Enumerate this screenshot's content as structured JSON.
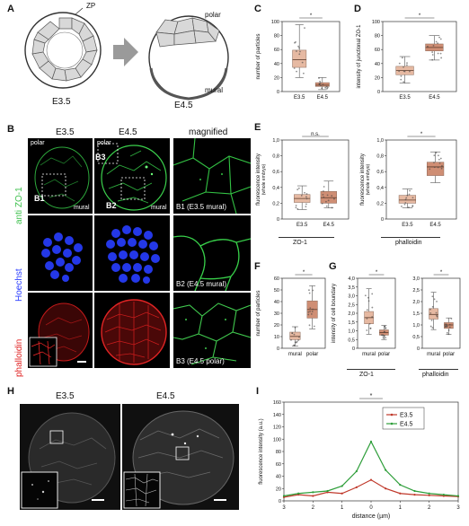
{
  "panels": {
    "A": "A",
    "B": "B",
    "C": "C",
    "D": "D",
    "E": "E",
    "F": "F",
    "G": "G",
    "H": "H",
    "I": "I"
  },
  "schematic": {
    "zp": "ZP",
    "polar": "polar",
    "mural": "mural",
    "left_stage": "E3.5",
    "right_stage": "E4.5"
  },
  "panel_b": {
    "col_e35": "E3.5",
    "col_e45": "E4.5",
    "col_mag": "magnified",
    "polar": "polar",
    "mural": "mural",
    "box_b1": "B1",
    "box_b2": "B2",
    "box_b3": "B3",
    "row_zo1": "anti ZO-1",
    "row_hoechst": "Hoechst",
    "row_phalloidin": "phalloidin",
    "mag_b1": "B1 (E3.5 mural)",
    "mag_b2": "B2 (E4.5 mural)",
    "mag_b3": "B3 (E4.5 polar)"
  },
  "panel_h": {
    "e35": "E3.5",
    "e45": "E4.5"
  },
  "colors": {
    "zo1": "#39c24a",
    "hoechst": "#2a3cff",
    "phalloidin": "#e02020",
    "box_fill": "#e6b9a2",
    "box_fill_dark": "#cf8e74",
    "e35_line": "#c0392b",
    "e45_line": "#2e9e3a"
  },
  "chart_data": [
    {
      "id": "C",
      "type": "box",
      "categories": [
        "E3.5",
        "E4.5"
      ],
      "ylabel": "number of particles",
      "ylim": [
        0,
        110
      ],
      "yticks": [
        0,
        20,
        40,
        60,
        80,
        100
      ],
      "significance": "*",
      "boxes": [
        {
          "q1": 38,
          "median": 50,
          "q3": 65,
          "min": 22,
          "max": 105
        },
        {
          "q1": 8,
          "median": 10,
          "q3": 14,
          "min": 3,
          "max": 22
        }
      ]
    },
    {
      "id": "D",
      "type": "box",
      "categories": [
        "E3.5",
        "E4.5"
      ],
      "ylabel": "intensity of junctional ZO-1",
      "ylim": [
        0,
        100
      ],
      "yticks": [
        0,
        20,
        40,
        60,
        80,
        100
      ],
      "significance": "*",
      "boxes": [
        {
          "q1": 24,
          "median": 30,
          "q3": 36,
          "min": 12,
          "max": 50
        },
        {
          "q1": 58,
          "median": 63,
          "q3": 68,
          "min": 45,
          "max": 80
        }
      ]
    },
    {
      "id": "E1",
      "type": "box",
      "categories": [
        "E3.5",
        "E4.5"
      ],
      "group": "ZO-1",
      "ylabel": "fluorescence intensity",
      "ylabel2": "(whole embryo)",
      "ylim": [
        0,
        1
      ],
      "yticks": [
        "0",
        "0,2",
        "0,4",
        "0,6",
        "0,8",
        "1,0"
      ],
      "significance": "n.s.",
      "boxes": [
        {
          "q1": 0.21,
          "median": 0.26,
          "q3": 0.31,
          "min": 0.12,
          "max": 0.42
        },
        {
          "q1": 0.2,
          "median": 0.27,
          "q3": 0.35,
          "min": 0.14,
          "max": 0.48
        }
      ]
    },
    {
      "id": "E2",
      "type": "box",
      "categories": [
        "E3.5",
        "E4.5"
      ],
      "group": "phalloidin",
      "ylabel": "fluorescence intensity",
      "ylabel2": "(whole embryo)",
      "ylim": [
        0,
        1
      ],
      "yticks": [
        "0",
        "0,2",
        "0,4",
        "0,6",
        "0,8",
        "1,0"
      ],
      "significance": "*",
      "boxes": [
        {
          "q1": 0.2,
          "median": 0.24,
          "q3": 0.3,
          "min": 0.14,
          "max": 0.38
        },
        {
          "q1": 0.55,
          "median": 0.66,
          "q3": 0.72,
          "min": 0.46,
          "max": 0.85
        }
      ]
    },
    {
      "id": "F",
      "type": "box",
      "categories": [
        "mural",
        "polar"
      ],
      "ylabel": "number of particles",
      "ylim": [
        0,
        65
      ],
      "yticks": [
        0,
        10,
        20,
        30,
        40,
        50,
        60
      ],
      "significance": "*",
      "boxes": [
        {
          "q1": 8,
          "median": 11,
          "q3": 15,
          "min": 2,
          "max": 20
        },
        {
          "q1": 28,
          "median": 36,
          "q3": 44,
          "min": 18,
          "max": 58
        }
      ]
    },
    {
      "id": "G1",
      "type": "box",
      "categories": [
        "mural",
        "polar"
      ],
      "group": "ZO-1",
      "ylabel": "intensity of cell boundary",
      "ylim": [
        0,
        4
      ],
      "yticks": [
        "0",
        "0,5",
        "1,0",
        "1,5",
        "2,0",
        "2,5",
        "3,0",
        "3,5",
        "4,0"
      ],
      "significance": "*",
      "boxes": [
        {
          "q1": 1.4,
          "median": 1.75,
          "q3": 2.1,
          "min": 0.8,
          "max": 3.4
        },
        {
          "q1": 0.75,
          "median": 0.9,
          "q3": 1.05,
          "min": 0.5,
          "max": 1.3
        }
      ]
    },
    {
      "id": "G2",
      "type": "box",
      "categories": [
        "mural",
        "polar"
      ],
      "group": "phalloidin",
      "ylim": [
        0,
        3
      ],
      "yticks": [
        "0",
        "0,5",
        "1,0",
        "1,5",
        "2,0",
        "2,5",
        "3,0"
      ],
      "significance": "*",
      "boxes": [
        {
          "q1": 1.25,
          "median": 1.45,
          "q3": 1.7,
          "min": 0.8,
          "max": 2.4
        },
        {
          "q1": 0.85,
          "median": 1.0,
          "q3": 1.1,
          "min": 0.6,
          "max": 1.3
        }
      ]
    },
    {
      "id": "I",
      "type": "line",
      "xlabel": "distance (µm)",
      "ylabel": "fluorescence intensity (a.u.)",
      "xlim": [
        -3,
        3
      ],
      "xticks_labels": [
        "3",
        "2",
        "1",
        "0",
        "1",
        "2",
        "3"
      ],
      "ylim": [
        0,
        160
      ],
      "yticks": [
        0,
        20,
        40,
        60,
        80,
        100,
        120,
        140,
        160
      ],
      "significance": "*",
      "legend": [
        "E3.5",
        "E4.5"
      ],
      "series": [
        {
          "name": "E3.5",
          "x": [
            -3,
            -2.5,
            -2,
            -1.5,
            -1,
            -0.5,
            0,
            0.5,
            1,
            1.5,
            2,
            2.5,
            3
          ],
          "y": [
            6,
            10,
            8,
            14,
            12,
            22,
            34,
            20,
            12,
            10,
            9,
            8,
            7
          ]
        },
        {
          "name": "E4.5",
          "x": [
            -3,
            -2.5,
            -2,
            -1.5,
            -1,
            -0.5,
            0,
            0.5,
            1,
            1.5,
            2,
            2.5,
            3
          ],
          "y": [
            8,
            12,
            14,
            16,
            24,
            48,
            96,
            50,
            26,
            16,
            12,
            10,
            8
          ]
        }
      ]
    }
  ]
}
